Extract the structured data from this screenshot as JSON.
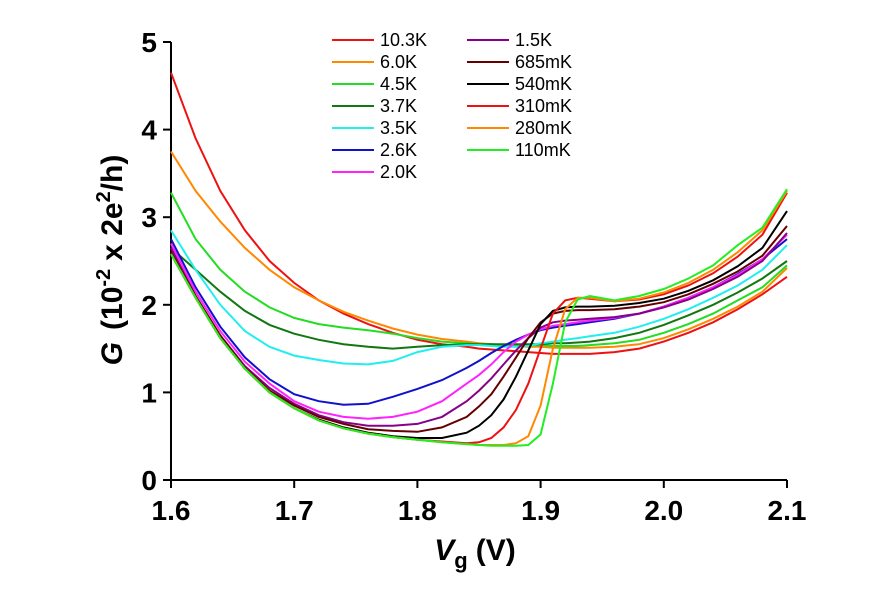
{
  "chart_data": {
    "type": "line",
    "xlabel": {
      "var": "V",
      "sub": "g",
      "unit": "(V)"
    },
    "ylabel": {
      "var": "G",
      "pre": "(10",
      "exp": "-2",
      "mid": "x 2e",
      "exp2": "2",
      "post": "/h)"
    },
    "x": [
      1.6,
      1.62,
      1.64,
      1.66,
      1.68,
      1.7,
      1.72,
      1.74,
      1.76,
      1.78,
      1.8,
      1.82,
      1.84,
      1.85,
      1.86,
      1.87,
      1.88,
      1.89,
      1.9,
      1.91,
      1.92,
      1.93,
      1.94,
      1.96,
      1.98,
      2.0,
      2.02,
      2.04,
      2.06,
      2.08,
      2.1
    ],
    "series": [
      {
        "name": "10.3K",
        "color": "#ee1111",
        "values": [
          4.65,
          3.9,
          3.3,
          2.85,
          2.5,
          2.25,
          2.05,
          1.9,
          1.78,
          1.68,
          1.6,
          1.55,
          1.52,
          1.5,
          1.49,
          1.48,
          1.47,
          1.46,
          1.45,
          1.44,
          1.44,
          1.44,
          1.44,
          1.46,
          1.5,
          1.58,
          1.68,
          1.8,
          1.95,
          2.12,
          2.32
        ]
      },
      {
        "name": "6.0K",
        "color": "#ff8800",
        "values": [
          3.75,
          3.3,
          2.95,
          2.65,
          2.4,
          2.2,
          2.05,
          1.92,
          1.82,
          1.73,
          1.66,
          1.61,
          1.58,
          1.56,
          1.55,
          1.54,
          1.53,
          1.52,
          1.52,
          1.51,
          1.51,
          1.51,
          1.51,
          1.52,
          1.55,
          1.62,
          1.72,
          1.84,
          1.98,
          2.15,
          2.42
        ]
      },
      {
        "name": "4.5K",
        "color": "#22dd22",
        "values": [
          3.28,
          2.75,
          2.4,
          2.15,
          1.97,
          1.85,
          1.78,
          1.74,
          1.71,
          1.67,
          1.62,
          1.58,
          1.56,
          1.55,
          1.55,
          1.54,
          1.54,
          1.54,
          1.54,
          1.53,
          1.53,
          1.53,
          1.54,
          1.56,
          1.6,
          1.68,
          1.78,
          1.9,
          2.05,
          2.2,
          2.45
        ]
      },
      {
        "name": "3.7K",
        "color": "#117711",
        "values": [
          2.65,
          2.4,
          2.15,
          1.93,
          1.77,
          1.67,
          1.6,
          1.55,
          1.52,
          1.5,
          1.52,
          1.54,
          1.55,
          1.55,
          1.55,
          1.55,
          1.55,
          1.55,
          1.55,
          1.56,
          1.56,
          1.57,
          1.58,
          1.62,
          1.68,
          1.77,
          1.88,
          2.0,
          2.14,
          2.3,
          2.5
        ]
      },
      {
        "name": "3.5K",
        "color": "#22eeee",
        "values": [
          2.85,
          2.4,
          2.0,
          1.7,
          1.52,
          1.42,
          1.37,
          1.33,
          1.32,
          1.36,
          1.46,
          1.52,
          1.54,
          1.54,
          1.53,
          1.52,
          1.52,
          1.53,
          1.56,
          1.58,
          1.6,
          1.62,
          1.64,
          1.68,
          1.75,
          1.84,
          1.95,
          2.08,
          2.22,
          2.4,
          2.68
        ]
      },
      {
        "name": "2.6K",
        "color": "#1111cc",
        "values": [
          2.75,
          2.2,
          1.75,
          1.4,
          1.15,
          0.98,
          0.9,
          0.86,
          0.87,
          0.95,
          1.04,
          1.14,
          1.28,
          1.36,
          1.45,
          1.53,
          1.6,
          1.66,
          1.71,
          1.74,
          1.76,
          1.78,
          1.8,
          1.84,
          1.9,
          1.98,
          2.08,
          2.2,
          2.35,
          2.52,
          2.75
        ]
      },
      {
        "name": "2.0K",
        "color": "#ff22ff",
        "values": [
          2.7,
          2.15,
          1.7,
          1.35,
          1.1,
          0.9,
          0.78,
          0.72,
          0.7,
          0.72,
          0.78,
          0.9,
          1.1,
          1.2,
          1.32,
          1.46,
          1.58,
          1.66,
          1.72,
          1.76,
          1.78,
          1.8,
          1.82,
          1.85,
          1.9,
          1.98,
          2.08,
          2.2,
          2.34,
          2.52,
          2.8
        ]
      },
      {
        "name": "1.5K",
        "color": "#880088",
        "values": [
          2.65,
          2.1,
          1.65,
          1.3,
          1.05,
          0.87,
          0.74,
          0.66,
          0.62,
          0.62,
          0.64,
          0.72,
          0.9,
          1.02,
          1.16,
          1.32,
          1.48,
          1.62,
          1.74,
          1.8,
          1.82,
          1.83,
          1.84,
          1.86,
          1.9,
          1.97,
          2.06,
          2.18,
          2.32,
          2.5,
          2.82
        ]
      },
      {
        "name": "685mK",
        "color": "#660000",
        "values": [
          2.6,
          2.1,
          1.65,
          1.28,
          1.02,
          0.85,
          0.72,
          0.64,
          0.58,
          0.56,
          0.55,
          0.6,
          0.72,
          0.84,
          0.98,
          1.18,
          1.4,
          1.62,
          1.8,
          1.9,
          1.93,
          1.94,
          1.94,
          1.95,
          1.98,
          2.03,
          2.12,
          2.24,
          2.38,
          2.56,
          2.9
        ]
      },
      {
        "name": "540mK",
        "color": "#000000",
        "values": [
          2.58,
          2.08,
          1.62,
          1.27,
          1.0,
          0.82,
          0.69,
          0.6,
          0.54,
          0.5,
          0.48,
          0.48,
          0.54,
          0.62,
          0.74,
          0.92,
          1.18,
          1.48,
          1.78,
          1.93,
          1.97,
          1.98,
          1.98,
          1.99,
          2.02,
          2.07,
          2.16,
          2.28,
          2.44,
          2.65,
          3.07
        ]
      },
      {
        "name": "310mK",
        "color": "#ee1111",
        "values": [
          2.58,
          2.08,
          1.62,
          1.27,
          1.0,
          0.82,
          0.68,
          0.59,
          0.53,
          0.49,
          0.46,
          0.44,
          0.42,
          0.43,
          0.48,
          0.6,
          0.8,
          1.1,
          1.5,
          1.9,
          2.05,
          2.08,
          2.07,
          2.04,
          2.06,
          2.12,
          2.22,
          2.36,
          2.55,
          2.8,
          3.28
        ]
      },
      {
        "name": "280mK",
        "color": "#ff8800",
        "values": [
          2.58,
          2.08,
          1.62,
          1.27,
          1.0,
          0.82,
          0.68,
          0.59,
          0.53,
          0.49,
          0.46,
          0.43,
          0.41,
          0.4,
          0.4,
          0.4,
          0.42,
          0.5,
          0.85,
          1.5,
          1.95,
          2.08,
          2.08,
          2.04,
          2.07,
          2.14,
          2.25,
          2.4,
          2.6,
          2.85,
          3.3
        ]
      },
      {
        "name": "110mK",
        "color": "#22ee22",
        "values": [
          2.58,
          2.08,
          1.62,
          1.27,
          1.0,
          0.82,
          0.68,
          0.59,
          0.53,
          0.49,
          0.46,
          0.43,
          0.41,
          0.4,
          0.39,
          0.39,
          0.39,
          0.4,
          0.52,
          1.1,
          1.8,
          2.06,
          2.1,
          2.05,
          2.1,
          2.18,
          2.3,
          2.45,
          2.68,
          2.88,
          3.32
        ]
      }
    ],
    "xlim": [
      1.6,
      2.1
    ],
    "xticks": [
      1.6,
      1.7,
      1.8,
      1.9,
      {
        "value": 2,
        "label": "2.0"
      },
      2.1
    ],
    "ylim": [
      0,
      5
    ],
    "yticks": [
      0,
      1,
      2,
      3,
      4,
      5
    ]
  }
}
